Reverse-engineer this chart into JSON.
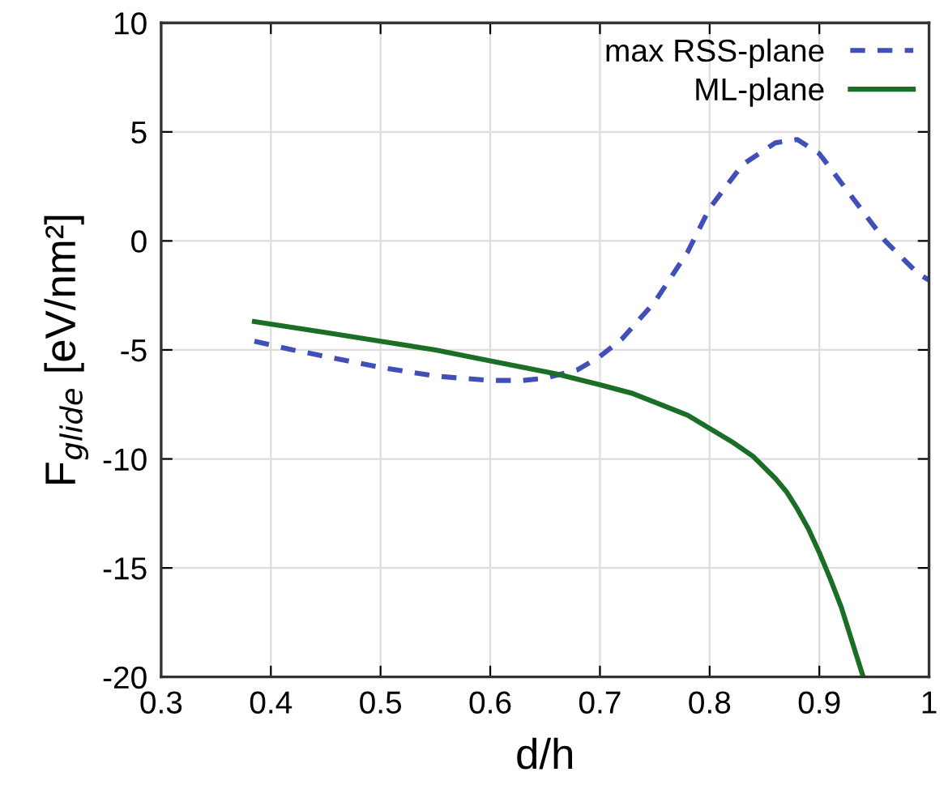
{
  "chart_data": {
    "type": "line",
    "xlabel": "d/h",
    "ylabel": "F$_{glide}$ [eV/nm²]",
    "xlim": [
      0.3,
      1
    ],
    "ylim": [
      -20,
      10
    ],
    "xticks": [
      0.3,
      0.4,
      0.5,
      0.6,
      0.7,
      0.8,
      0.9,
      1
    ],
    "yticks": [
      -20,
      -15,
      -10,
      -5,
      0,
      5,
      10
    ],
    "grid": true,
    "legend": "top right",
    "marker": "none",
    "series": [
      {
        "name": "max RSS-plane",
        "color": "#4050b8",
        "line_style": "dashed",
        "x": [
          0.385,
          0.42,
          0.45,
          0.5,
          0.55,
          0.6,
          0.63,
          0.65,
          0.68,
          0.7,
          0.72,
          0.75,
          0.78,
          0.8,
          0.83,
          0.86,
          0.88,
          0.9,
          0.93,
          0.96,
          0.99,
          1.0
        ],
        "values": [
          -4.6,
          -5.0,
          -5.3,
          -5.8,
          -6.2,
          -6.4,
          -6.4,
          -6.3,
          -5.9,
          -5.3,
          -4.5,
          -2.8,
          -0.5,
          1.5,
          3.5,
          4.5,
          4.65,
          4.0,
          2.0,
          0.0,
          -1.5,
          -1.8
        ]
      },
      {
        "name": "ML-plane",
        "color": "#1a6e25",
        "line_style": "solid",
        "x": [
          0.385,
          0.45,
          0.5,
          0.55,
          0.6,
          0.66,
          0.7,
          0.73,
          0.76,
          0.78,
          0.8,
          0.82,
          0.84,
          0.86,
          0.87,
          0.88,
          0.89,
          0.9,
          0.91,
          0.92,
          0.93,
          0.94
        ],
        "values": [
          -3.7,
          -4.2,
          -4.6,
          -5.0,
          -5.5,
          -6.1,
          -6.6,
          -7.0,
          -7.6,
          -8.0,
          -8.6,
          -9.2,
          -9.9,
          -10.9,
          -11.5,
          -12.3,
          -13.2,
          -14.3,
          -15.5,
          -16.8,
          -18.4,
          -20
        ]
      }
    ]
  }
}
